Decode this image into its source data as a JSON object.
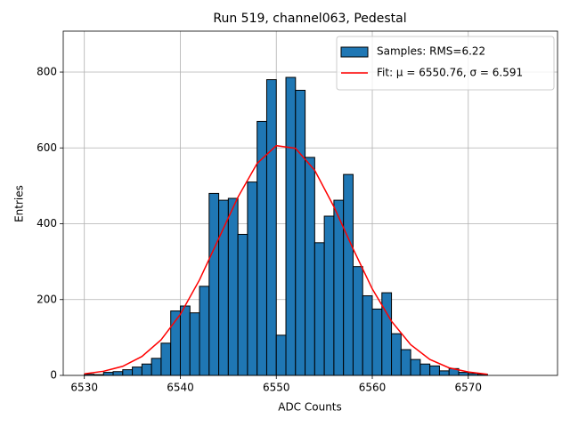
{
  "chart_data": {
    "type": "histogram",
    "title": "Run 519, channel063, Pedestal",
    "x_label": "ADC Counts",
    "y_label": "Entries",
    "bins": [
      6530,
      6531,
      6532,
      6533,
      6534,
      6535,
      6536,
      6537,
      6538,
      6539,
      6540,
      6541,
      6542,
      6543,
      6544,
      6545,
      6546,
      6547,
      6548,
      6549,
      6550,
      6551,
      6552,
      6553,
      6554,
      6555,
      6556,
      6557,
      6558,
      6559,
      6560,
      6561,
      6562,
      6563,
      6564,
      6565,
      6566,
      6567,
      6568,
      6569,
      6570,
      6571,
      6572
    ],
    "counts": [
      3,
      2,
      8,
      10,
      15,
      22,
      30,
      45,
      85,
      170,
      183,
      165,
      235,
      480,
      462,
      467,
      372,
      510,
      670,
      780,
      106,
      786,
      752,
      575,
      350,
      420,
      462,
      530,
      287,
      210,
      175,
      218,
      110,
      68,
      42,
      30,
      25,
      12,
      18,
      8,
      5,
      3
    ],
    "name": "Samples: RMS=6.22",
    "color": "#1f77b4",
    "edge_color": "#000000",
    "fit": {
      "type": "line",
      "name": "Fit: μ = 6550.76, σ = 6.591",
      "color": "#ff0000",
      "x": [
        6530,
        6532,
        6534,
        6536,
        6538,
        6540,
        6542,
        6544,
        6546,
        6548,
        6550,
        6552,
        6554,
        6556,
        6558,
        6560,
        6562,
        6564,
        6566,
        6568,
        6570,
        6572
      ],
      "values": [
        4,
        11,
        24,
        50,
        94,
        161,
        252,
        361,
        470,
        559,
        606,
        599,
        541,
        445,
        334,
        228,
        143,
        81,
        42,
        20,
        9,
        3
      ]
    },
    "xlim": [
      6527.8,
      6579.3
    ],
    "ylim": [
      0,
      908
    ],
    "xticks": [
      6530,
      6540,
      6550,
      6560,
      6570
    ],
    "yticks": [
      0,
      200,
      400,
      600,
      800
    ],
    "grid": true,
    "legend": "upper right"
  }
}
